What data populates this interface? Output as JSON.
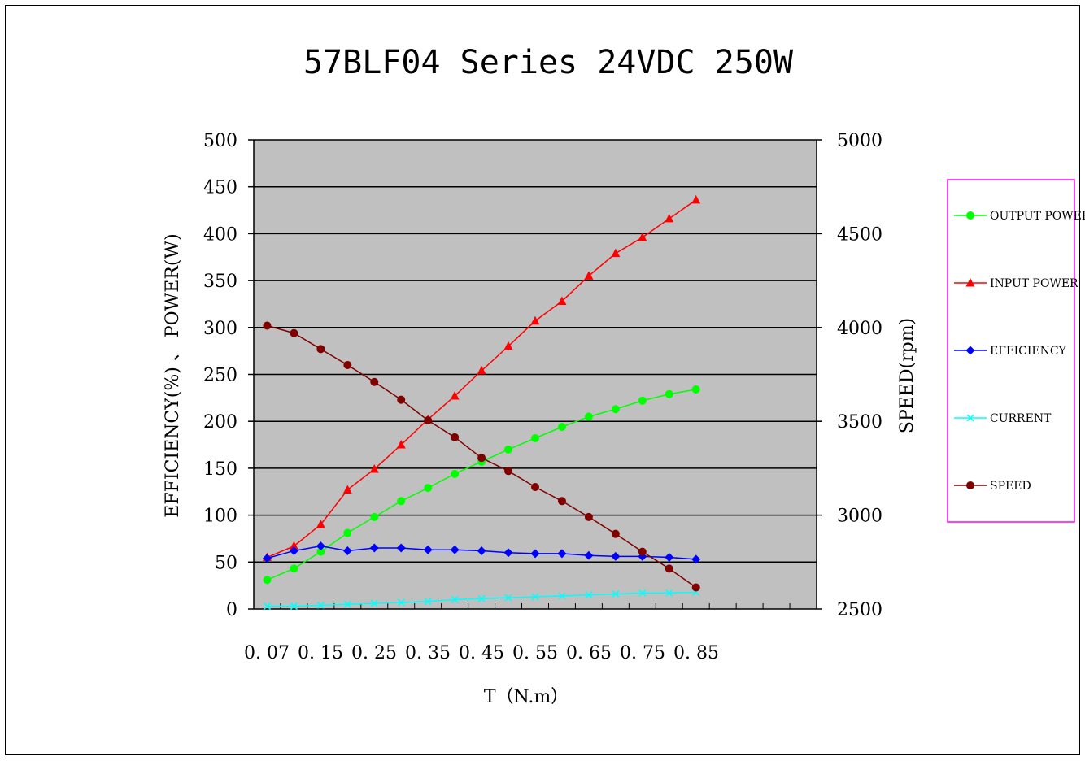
{
  "chart_data": {
    "type": "line",
    "title": "57BLF04 Series 24VDC 250W",
    "xlabel": "T（N.m）",
    "ylabel": "EFFICIENCY(%) 、 POWER(W)",
    "y2label": "SPEED(rpm)",
    "ylim": [
      0,
      500
    ],
    "y2lim": [
      2500,
      5000
    ],
    "yticks": [
      "0",
      "50",
      "100",
      "150",
      "200",
      "250",
      "300",
      "350",
      "400",
      "450",
      "500"
    ],
    "y2ticks": [
      "2500",
      "3000",
      "3500",
      "4000",
      "4500",
      "5000"
    ],
    "xticks": [
      "0. 07",
      "0. 15",
      "0. 25",
      "0. 35",
      "0. 45",
      "0. 55",
      "0. 65",
      "0. 75",
      "0. 85"
    ],
    "x_slots": 21,
    "grid": true,
    "plot_background": "#c0c0c0",
    "legend_position": "right",
    "legend_border_color": "#ff00ff",
    "series": [
      {
        "name": "OUTPUT POWER",
        "color": "#00ff00",
        "marker": "circle",
        "axis": "left",
        "values": [
          31,
          43,
          61,
          81,
          98,
          115,
          129,
          144,
          157,
          170,
          182,
          194,
          205,
          213,
          222,
          229,
          234
        ]
      },
      {
        "name": "INPUT POWER",
        "color": "#ff0000",
        "marker": "triangle",
        "axis": "left",
        "values": [
          55,
          67,
          90,
          127,
          149,
          175,
          202,
          227,
          254,
          280,
          307,
          328,
          355,
          379,
          396,
          416,
          436
        ]
      },
      {
        "name": "EFFICIENCY",
        "color": "#0000ff",
        "marker": "diamond",
        "axis": "left",
        "values": [
          54,
          62,
          67,
          62,
          65,
          65,
          63,
          63,
          62,
          60,
          59,
          59,
          57,
          56,
          56,
          55,
          53
        ]
      },
      {
        "name": "CURRENT",
        "color": "#00ffff",
        "marker": "x",
        "axis": "left",
        "values": [
          3,
          3,
          4,
          5,
          6,
          7,
          8,
          10,
          11,
          12,
          13,
          14,
          15,
          16,
          17,
          17,
          18
        ]
      },
      {
        "name": "SPEED",
        "color": "#800000",
        "marker": "circle",
        "axis": "right",
        "values": [
          4010,
          3970,
          3885,
          3800,
          3710,
          3615,
          3505,
          3415,
          3305,
          3235,
          3150,
          3075,
          2990,
          2900,
          2805,
          2715,
          2615
        ]
      }
    ]
  }
}
